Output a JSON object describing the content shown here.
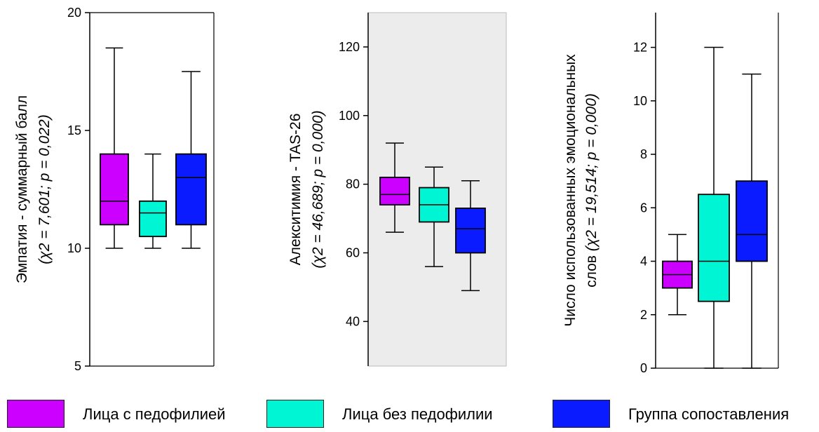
{
  "chart_data": [
    {
      "type": "boxplot",
      "ylabel": "Эмпатия - суммарный балл",
      "ylabel_stat": "(χ2 = 7,601; p = 0,022)",
      "ylim": [
        5,
        20
      ],
      "yticks": [
        5,
        10,
        15,
        20
      ],
      "background": "#ffffff",
      "series": [
        {
          "min": 10,
          "q1": 11,
          "median": 12,
          "q3": 14,
          "max": 18.5
        },
        {
          "min": 10,
          "q1": 10.5,
          "median": 11.5,
          "q3": 12,
          "max": 14
        },
        {
          "min": 10,
          "q1": 11,
          "median": 13,
          "q3": 14,
          "max": 17.5
        }
      ]
    },
    {
      "type": "boxplot",
      "ylabel": "Алекситимия - TAS-26",
      "ylabel_stat": "(χ2 = 46,689; p = 0,000)",
      "ylim": [
        27,
        130
      ],
      "yticks": [
        40,
        60,
        80,
        100,
        120
      ],
      "background": "#ececec",
      "series": [
        {
          "min": 66,
          "q1": 74,
          "median": 77,
          "q3": 82,
          "max": 92
        },
        {
          "min": 56,
          "q1": 69,
          "median": 74,
          "q3": 79,
          "max": 85
        },
        {
          "min": 49,
          "q1": 60,
          "median": 67,
          "q3": 73,
          "max": 81
        }
      ]
    },
    {
      "type": "boxplot",
      "ylabel": "Число использованных эмоциональных",
      "ylabel_line2": "слов",
      "ylabel_stat": "(χ2 = 19,514; p = 0,000)",
      "ylim": [
        0,
        13.3
      ],
      "yticks": [
        0,
        2,
        4,
        6,
        8,
        10,
        12
      ],
      "background": "#ffffff",
      "series": [
        {
          "min": 2,
          "q1": 3,
          "median": 3.5,
          "q3": 4,
          "max": 5
        },
        {
          "min": 0,
          "q1": 2.5,
          "median": 4,
          "q3": 6.5,
          "max": 12
        },
        {
          "min": 0,
          "q1": 4,
          "median": 5,
          "q3": 7,
          "max": 11
        }
      ]
    }
  ],
  "groups": [
    {
      "name": "Лица с педофилией",
      "color": "#cc00ff"
    },
    {
      "name": "Лица без педофилии",
      "color": "#00f5d4"
    },
    {
      "name": "Группа сопоставления",
      "color": "#0a1cff"
    }
  ]
}
